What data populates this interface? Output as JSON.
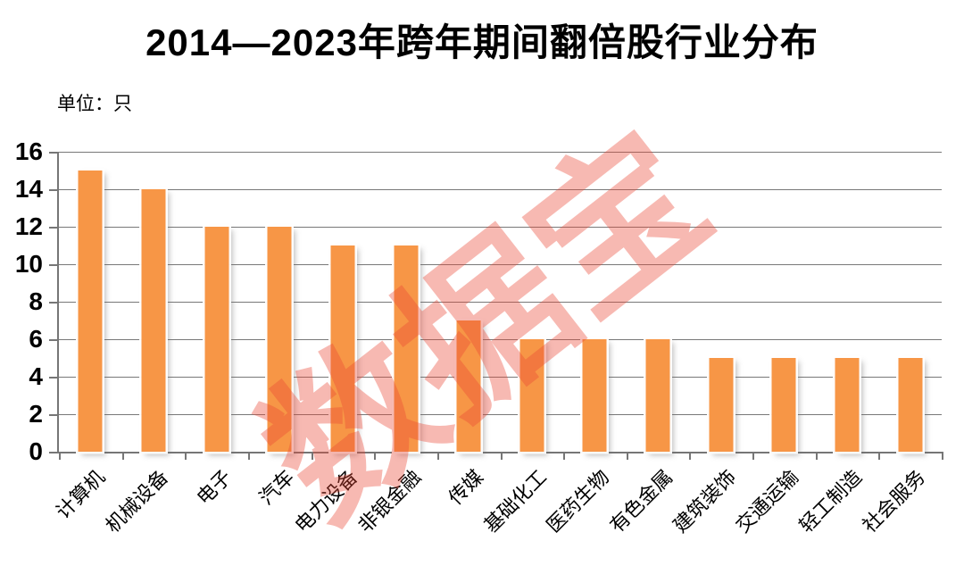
{
  "header": {
    "title": "2014—2023年跨年期间翻倍股行业分布",
    "unit_label": "单位：只"
  },
  "watermark": {
    "text": "数据宝",
    "color": "rgba(233,70,52,0.38)"
  },
  "chart_data": {
    "type": "bar",
    "title": "2014—2023年跨年期间翻倍股行业分布",
    "unit": "只",
    "categories": [
      "计算机",
      "机械设备",
      "电子",
      "汽车",
      "电力设备",
      "非银金融",
      "传媒",
      "基础化工",
      "医药生物",
      "有色金属",
      "建筑装饰",
      "交通运输",
      "轻工制造",
      "社会服务"
    ],
    "values": [
      15,
      14,
      12,
      12,
      11,
      11,
      7,
      6,
      6,
      6,
      5,
      5,
      5,
      5
    ],
    "xlabel": "",
    "ylabel": "",
    "ylim": [
      0,
      16
    ],
    "yticks": [
      0,
      2,
      4,
      6,
      8,
      10,
      12,
      14,
      16
    ],
    "grid": true,
    "legend": false,
    "bar_color": "#F79646",
    "gridline_color": "#787878",
    "axis_color": "#767676",
    "label_color": "#000000"
  }
}
